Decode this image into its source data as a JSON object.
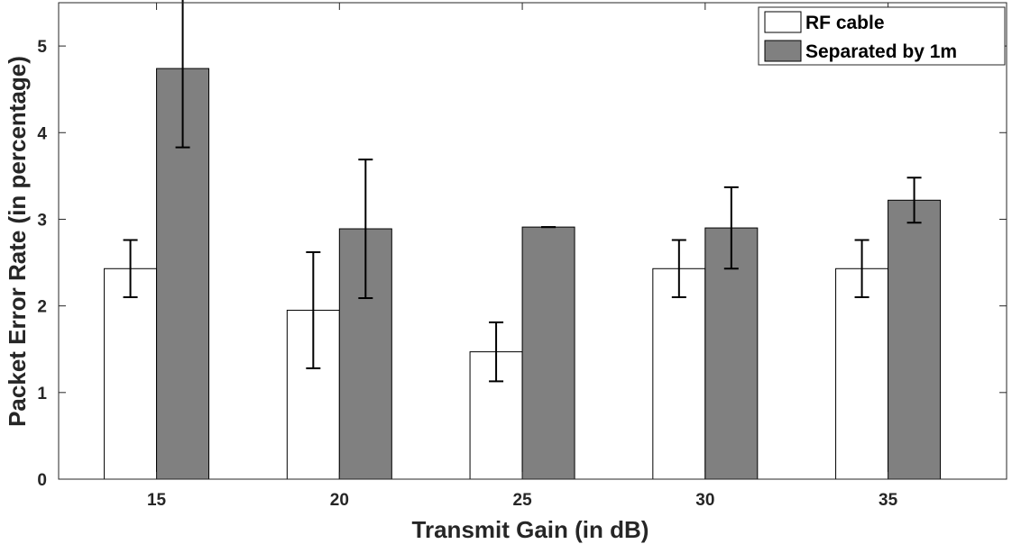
{
  "chart_data": {
    "type": "bar",
    "title": "",
    "xlabel": "Transmit Gain (in dB)",
    "ylabel": "Packet Error Rate (in percentage)",
    "categories": [
      "15",
      "20",
      "25",
      "30",
      "35"
    ],
    "ylim": [
      0,
      5.5
    ],
    "yticks": [
      0,
      1,
      2,
      3,
      4,
      5
    ],
    "grid": false,
    "legend_position": "top-right",
    "series": [
      {
        "name": "RF cable",
        "color": "#ffffff",
        "values": [
          2.43,
          1.95,
          1.47,
          2.43,
          2.43
        ],
        "error": [
          0.33,
          0.67,
          0.34,
          0.33,
          0.33
        ]
      },
      {
        "name": "Separated by 1m",
        "color": "#808080",
        "values": [
          4.74,
          2.89,
          2.91,
          2.9,
          3.22
        ],
        "error": [
          0.91,
          0.8,
          0.0,
          0.47,
          0.26
        ]
      }
    ]
  }
}
